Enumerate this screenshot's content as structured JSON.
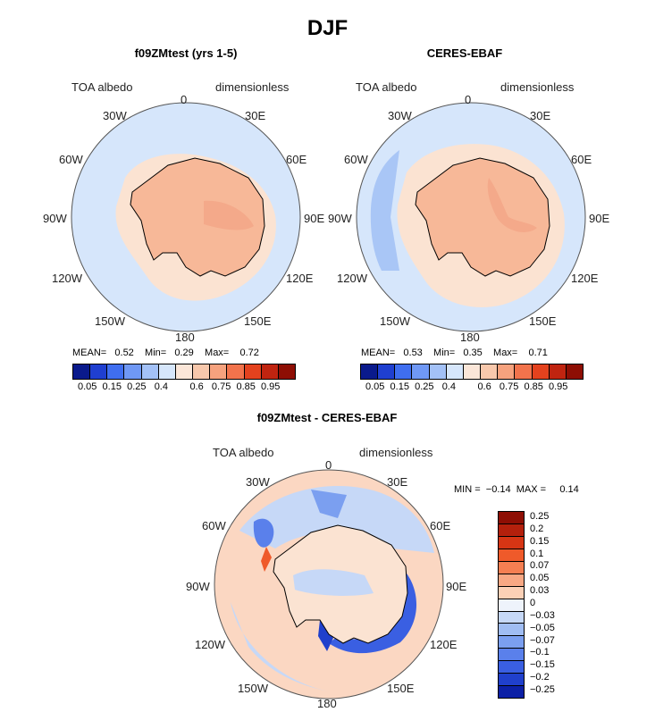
{
  "season": "DJF",
  "panels": [
    {
      "title": "f09ZMtest (yrs 1-5)",
      "variable": "TOA albedo",
      "units": "dimensionless",
      "stats": {
        "mean_label": "MEAN=",
        "mean": "0.52",
        "min_label": "Min=",
        "min": "0.29",
        "max_label": "Max=",
        "max": "0.72"
      }
    },
    {
      "title": "CERES-EBAF",
      "variable": "TOA albedo",
      "units": "dimensionless",
      "stats": {
        "mean_label": "MEAN=",
        "mean": "0.53",
        "min_label": "Min=",
        "min": "0.35",
        "max_label": "Max=",
        "max": "0.71"
      }
    },
    {
      "title": "f09ZMtest - CERES-EBAF",
      "variable": "TOA albedo",
      "units": "dimensionless",
      "stats": {
        "min_label": "MIN =",
        "min": "−0.14",
        "max_label": "MAX =",
        "max": "0.14"
      }
    }
  ],
  "longitude_labels": [
    "0",
    "30E",
    "60E",
    "90E",
    "120E",
    "150E",
    "180",
    "150W",
    "120W",
    "90W",
    "60W",
    "30W"
  ],
  "albedo_colorbar": {
    "colors": [
      "#0a1a8c",
      "#1f3fd0",
      "#3f6ef0",
      "#6f98f5",
      "#a3c1f7",
      "#d6e6fb",
      "#fbe6d8",
      "#f8c8ac",
      "#f6a27e",
      "#f2734c",
      "#e4421e",
      "#c02410",
      "#8e0e04"
    ],
    "tick_labels": [
      "0.05",
      "0.15",
      "0.25",
      "0.4",
      "0.6",
      "0.75",
      "0.85",
      "0.95"
    ]
  },
  "diff_colorbar": {
    "colors": [
      "#8e0e04",
      "#b4200c",
      "#d63514",
      "#ef5a2a",
      "#f57f52",
      "#f8a884",
      "#fbd0b6",
      "#eef3fb",
      "#c6d8f7",
      "#a0bdf3",
      "#7b9ff0",
      "#5a80eb",
      "#3a5fe2",
      "#2040cc",
      "#0c20a6"
    ],
    "tick_labels": [
      "0.25",
      "0.2",
      "0.15",
      "0.1",
      "0.07",
      "0.05",
      "0.03",
      "0",
      "−0.03",
      "−0.05",
      "−0.07",
      "−0.1",
      "−0.15",
      "−0.2",
      "−0.25"
    ]
  },
  "colors": {
    "ocean": "#d6e6fb",
    "land": "#f7b898",
    "ice_edge": "#fbe3d2",
    "coast": "#000000",
    "circle": "#555555"
  }
}
